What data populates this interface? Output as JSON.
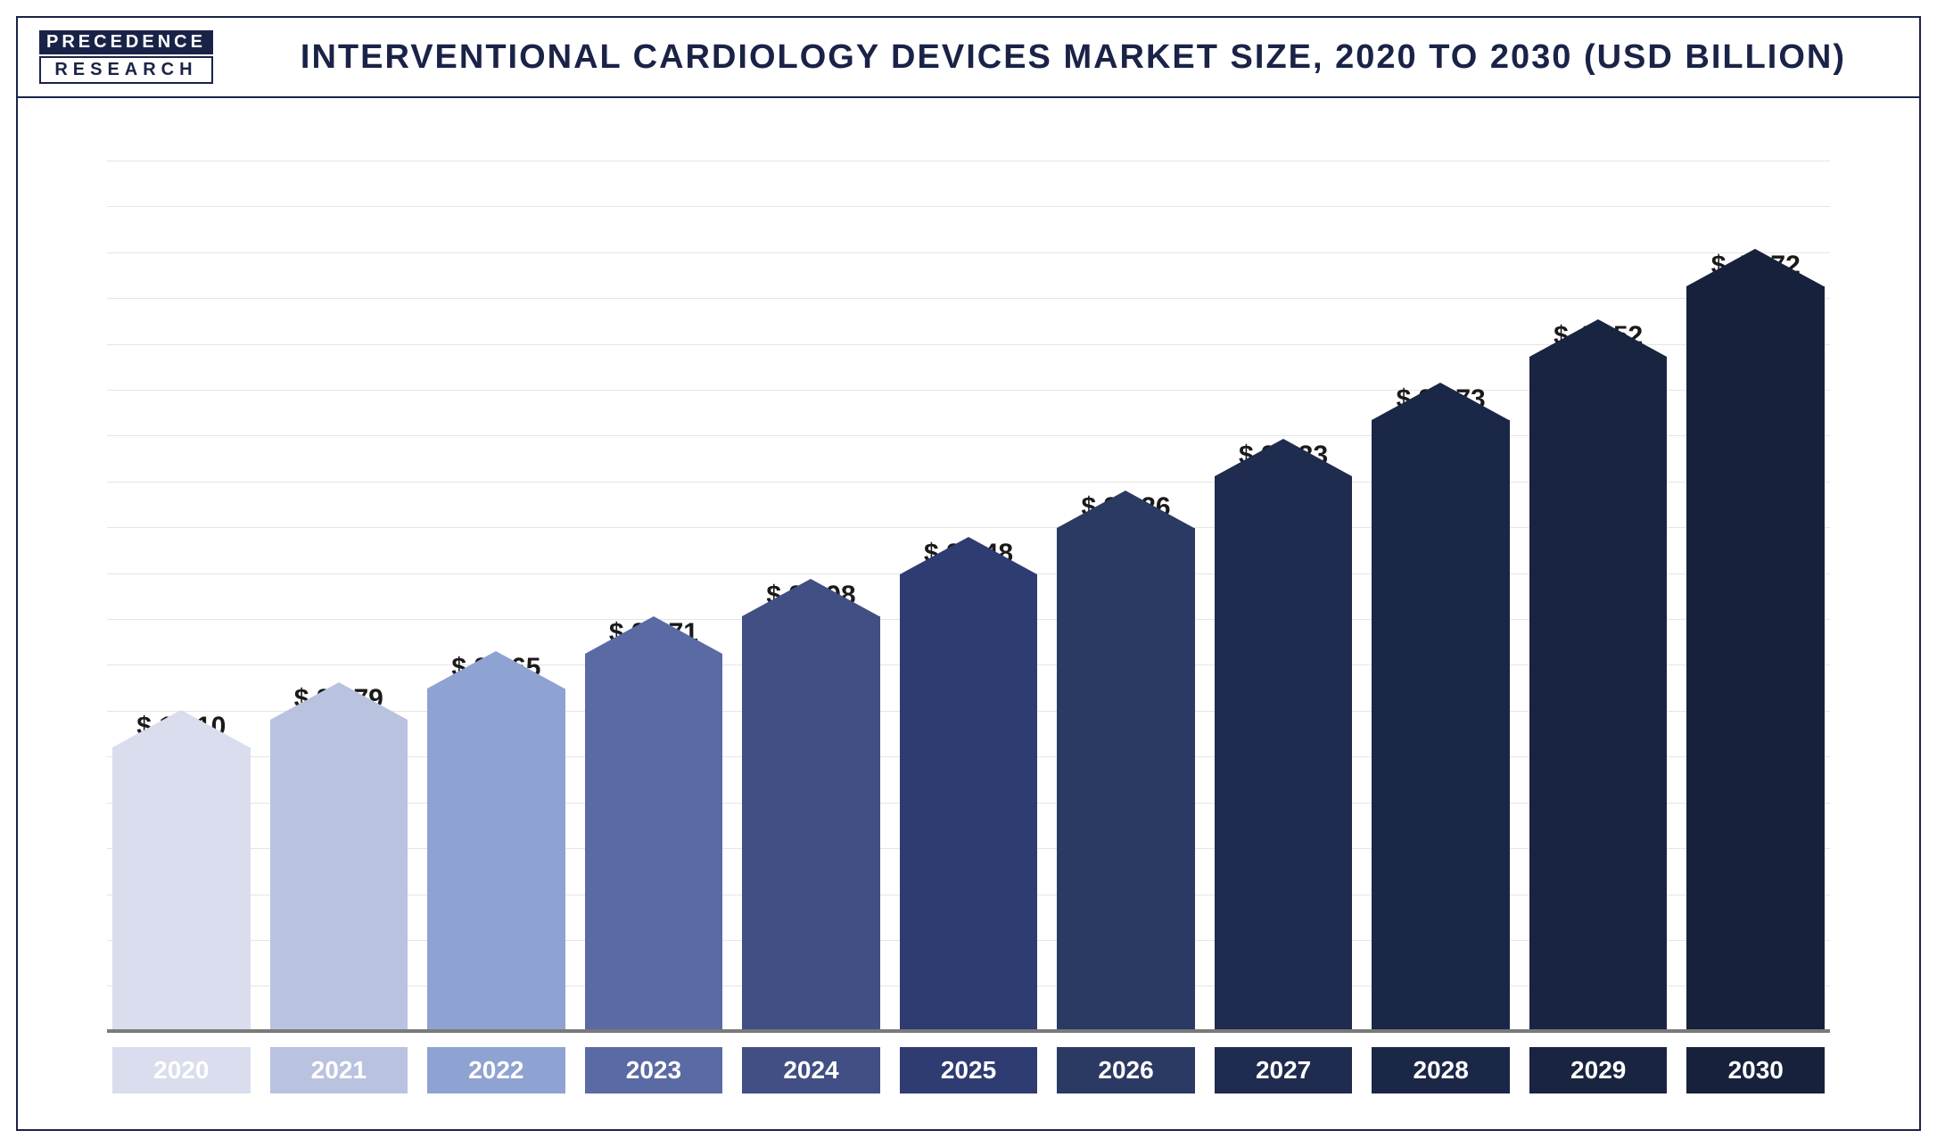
{
  "logo": {
    "line1": "PRECEDENCE",
    "line2": "RESEARCH"
  },
  "title": "INTERVENTIONAL CARDIOLOGY DEVICES MARKET SIZE, 2020 TO 2030 (USD BILLION)",
  "chart": {
    "type": "bar",
    "ylim": [
      0,
      52
    ],
    "gridlines_count": 20,
    "grid_color": "#e5e5e5",
    "axis_color": "#7a7a7a",
    "background_color": "#ffffff",
    "label_fontsize": 30,
    "label_color": "#1a1a1a",
    "xlabel_fontsize": 28,
    "xlabel_color": "#ffffff",
    "value_prefix": "$ ",
    "tip_height": 42,
    "categories": [
      "2020",
      "2021",
      "2022",
      "2023",
      "2024",
      "2025",
      "2026",
      "2027",
      "2028",
      "2029",
      "2030"
    ],
    "values": [
      19.1,
      20.79,
      22.65,
      24.71,
      26.98,
      29.48,
      32.26,
      35.33,
      38.73,
      42.52,
      46.72
    ],
    "bar_colors": [
      "#d9dded",
      "#b9c3e0",
      "#8ea3d1",
      "#5a6aa5",
      "#414f84",
      "#2e3c72",
      "#2b3a63",
      "#1f2b4f",
      "#1b2746",
      "#192440",
      "#17213b"
    ]
  }
}
